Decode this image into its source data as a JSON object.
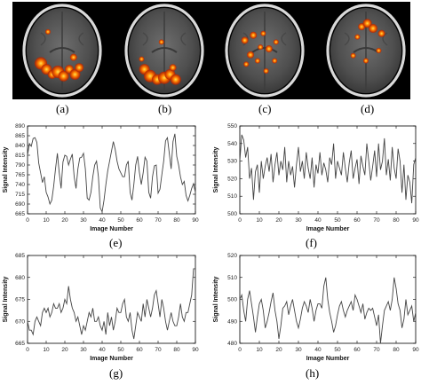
{
  "panel_captions": [
    "(a)",
    "(b)",
    "(c)",
    "(d)",
    "(e)",
    "(f)",
    "(g)",
    "(h)"
  ],
  "colors": {
    "scan_strip_bg": "#000000",
    "brain_tissue": "#5a5a5a",
    "skull_ring": "#d8d8d8",
    "activation_hot": "#ffd21a",
    "activation_warm": "#ff5a00",
    "activation_dark": "#b11c00",
    "trace": "#444444"
  },
  "chart_data": [
    {
      "type": "line",
      "panel": "(e)",
      "xlabel": "Image Number",
      "ylabel": "Signal Intensity",
      "xlim": [
        0,
        90
      ],
      "ylim": [
        665,
        890
      ],
      "xticks": [
        0,
        10,
        20,
        30,
        40,
        50,
        60,
        70,
        80,
        90
      ],
      "yticks": [
        665,
        690,
        715,
        740,
        765,
        790,
        815,
        840,
        865,
        890
      ],
      "series": [
        {
          "values": [
            815,
            845,
            838,
            858,
            860,
            848,
            795,
            770,
            745,
            760,
            720,
            708,
            690,
            700,
            735,
            780,
            820,
            770,
            730,
            798,
            815,
            812,
            790,
            805,
            818,
            760,
            730,
            780,
            808,
            810,
            820,
            780,
            705,
            700,
            720,
            760,
            790,
            800,
            760,
            680,
            670,
            700,
            740,
            775,
            800,
            825,
            850,
            830,
            800,
            780,
            770,
            760,
            760,
            790,
            800,
            720,
            700,
            740,
            790,
            812,
            770,
            740,
            770,
            810,
            800,
            720,
            705,
            760,
            788,
            790,
            718,
            728,
            765,
            800,
            852,
            860,
            820,
            780,
            850,
            870,
            812,
            790,
            760,
            740,
            748,
            712,
            698,
            712,
            730,
            742,
            720
          ]
        }
      ]
    },
    {
      "type": "line",
      "panel": "(f)",
      "xlabel": "Image Number",
      "ylabel": "Signal Intensity",
      "xlim": [
        0,
        90
      ],
      "ylim": [
        500,
        550
      ],
      "xticks": [
        0,
        10,
        20,
        30,
        40,
        50,
        60,
        70,
        80,
        90
      ],
      "yticks": [
        500,
        510,
        520,
        530,
        540,
        550
      ],
      "series": [
        {
          "values": [
            530,
            545,
            542,
            532,
            538,
            520,
            526,
            508,
            524,
            528,
            512,
            530,
            520,
            527,
            532,
            524,
            534,
            518,
            528,
            535,
            522,
            530,
            525,
            538,
            518,
            530,
            522,
            527,
            515,
            528,
            538,
            524,
            530,
            520,
            535,
            526,
            520,
            532,
            515,
            528,
            523,
            535,
            522,
            529,
            525,
            518,
            532,
            528,
            540,
            520,
            530,
            526,
            522,
            535,
            526,
            518,
            529,
            536,
            520,
            526,
            531,
            517,
            533,
            527,
            522,
            540,
            530,
            519,
            527,
            536,
            521,
            540,
            525,
            530,
            543,
            522,
            531,
            519,
            538,
            526,
            520,
            537,
            530,
            512,
            528,
            508,
            522,
            518,
            506,
            528,
            532
          ]
        }
      ]
    },
    {
      "type": "line",
      "panel": "(g)",
      "xlabel": "Image Number",
      "ylabel": "Signal Intensity",
      "xlim": [
        0,
        90
      ],
      "ylim": [
        665,
        685
      ],
      "xticks": [
        0,
        10,
        20,
        30,
        40,
        50,
        60,
        70,
        80,
        90
      ],
      "yticks": [
        665,
        670,
        675,
        680,
        685
      ],
      "series": [
        {
          "values": [
            670,
            668,
            668,
            667,
            670,
            671,
            670,
            669,
            672,
            673,
            672,
            673,
            671,
            672,
            674,
            673,
            673,
            674,
            672,
            673,
            675,
            674,
            678,
            675,
            673,
            672,
            670,
            671,
            669,
            667,
            669,
            668,
            670,
            672,
            671,
            673,
            670,
            670,
            671,
            669,
            668,
            670,
            667,
            672,
            669,
            671,
            668,
            670,
            673,
            672,
            672,
            674,
            675,
            671,
            670,
            672,
            668,
            666,
            669,
            672,
            671,
            670,
            674,
            671,
            675,
            673,
            671,
            673,
            676,
            677,
            674,
            671,
            675,
            673,
            670,
            668,
            670,
            672,
            670,
            669,
            669,
            671,
            674,
            671,
            670,
            672,
            672,
            674,
            676,
            682,
            682
          ]
        }
      ]
    },
    {
      "type": "line",
      "panel": "(h)",
      "xlabel": "Image Number",
      "ylabel": "Signal Intensity",
      "xlim": [
        0,
        90
      ],
      "ylim": [
        480,
        520
      ],
      "xticks": [
        0,
        10,
        20,
        30,
        40,
        50,
        60,
        70,
        80,
        90
      ],
      "yticks": [
        480,
        490,
        500,
        510,
        520
      ],
      "series": [
        {
          "values": [
            500,
            502,
            495,
            490,
            500,
            504,
            498,
            492,
            485,
            492,
            498,
            500,
            495,
            487,
            490,
            494,
            499,
            503,
            495,
            490,
            482,
            488,
            496,
            497,
            499,
            493,
            497,
            500,
            495,
            490,
            487,
            491,
            496,
            499,
            497,
            494,
            500,
            496,
            490,
            495,
            498,
            498,
            496,
            506,
            510,
            500,
            494,
            490,
            485,
            488,
            493,
            497,
            499,
            495,
            492,
            495,
            497,
            499,
            495,
            502,
            500,
            497,
            494,
            498,
            491,
            494,
            496,
            495,
            496,
            492,
            488,
            493,
            480,
            488,
            495,
            497,
            499,
            495,
            500,
            510,
            505,
            498,
            495,
            487,
            491,
            500,
            493,
            495,
            497,
            490,
            494
          ]
        }
      ]
    }
  ]
}
